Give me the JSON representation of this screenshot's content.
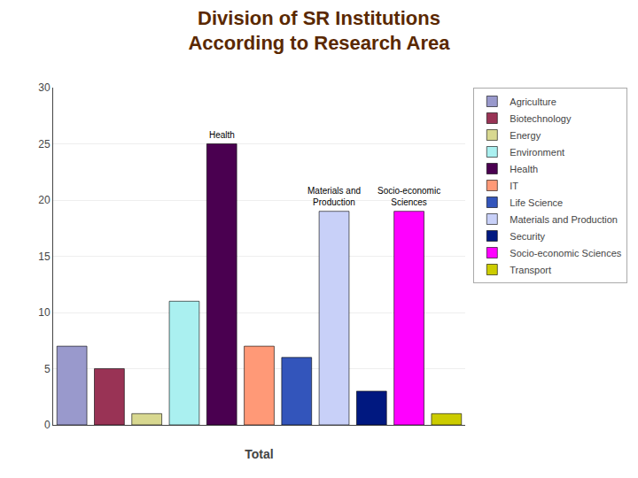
{
  "chart_data": {
    "type": "bar",
    "title": "Division of SR Institutions\nAccording to Research Area",
    "xlabel": "Total",
    "categories": [
      "Agriculture",
      "Biotechnology",
      "Energy",
      "Environment",
      "Health",
      "IT",
      "Life Science",
      "Materials and Production",
      "Security",
      "Socio-economic Sciences",
      "Transport"
    ],
    "values": [
      7,
      5,
      1,
      11,
      25,
      7,
      6,
      19,
      3,
      19,
      1
    ],
    "colors": [
      "#9999cc",
      "#993355",
      "#d8d890",
      "#aaf0f0",
      "#4a0050",
      "#ff9977",
      "#3355bb",
      "#c8d0f8",
      "#001880",
      "#ff00ff",
      "#cccc00"
    ],
    "ylim": [
      0,
      30
    ],
    "yticks": [
      0,
      5,
      10,
      15,
      20,
      25,
      30
    ],
    "grid": true,
    "legend": "right",
    "tick_labels": "y",
    "annotations": [
      {
        "text": "Health",
        "category": "Health"
      },
      {
        "text": "Materials and\nProduction",
        "category": "Materials and Production"
      },
      {
        "text": "Socio-economic\nSciences",
        "category": "Socio-economic Sciences"
      }
    ]
  }
}
